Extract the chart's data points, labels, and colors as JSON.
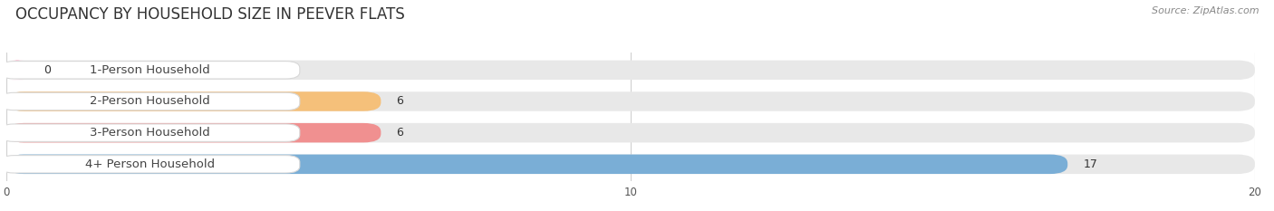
{
  "title": "OCCUPANCY BY HOUSEHOLD SIZE IN PEEVER FLATS",
  "source": "Source: ZipAtlas.com",
  "categories": [
    "1-Person Household",
    "2-Person Household",
    "3-Person Household",
    "4+ Person Household"
  ],
  "values": [
    0,
    6,
    6,
    17
  ],
  "bar_colors": [
    "#f48fb1",
    "#f5c07a",
    "#f09090",
    "#7aaed6"
  ],
  "xlim": [
    0,
    20
  ],
  "xticks": [
    0,
    10,
    20
  ],
  "bar_height": 0.62,
  "figsize": [
    14.06,
    2.33
  ],
  "dpi": 100,
  "title_fontsize": 12,
  "label_fontsize": 9.5,
  "value_fontsize": 9,
  "bg_color": "#ffffff",
  "bar_bg_color": "#e8e8e8",
  "grid_color": "#d0d0d0"
}
